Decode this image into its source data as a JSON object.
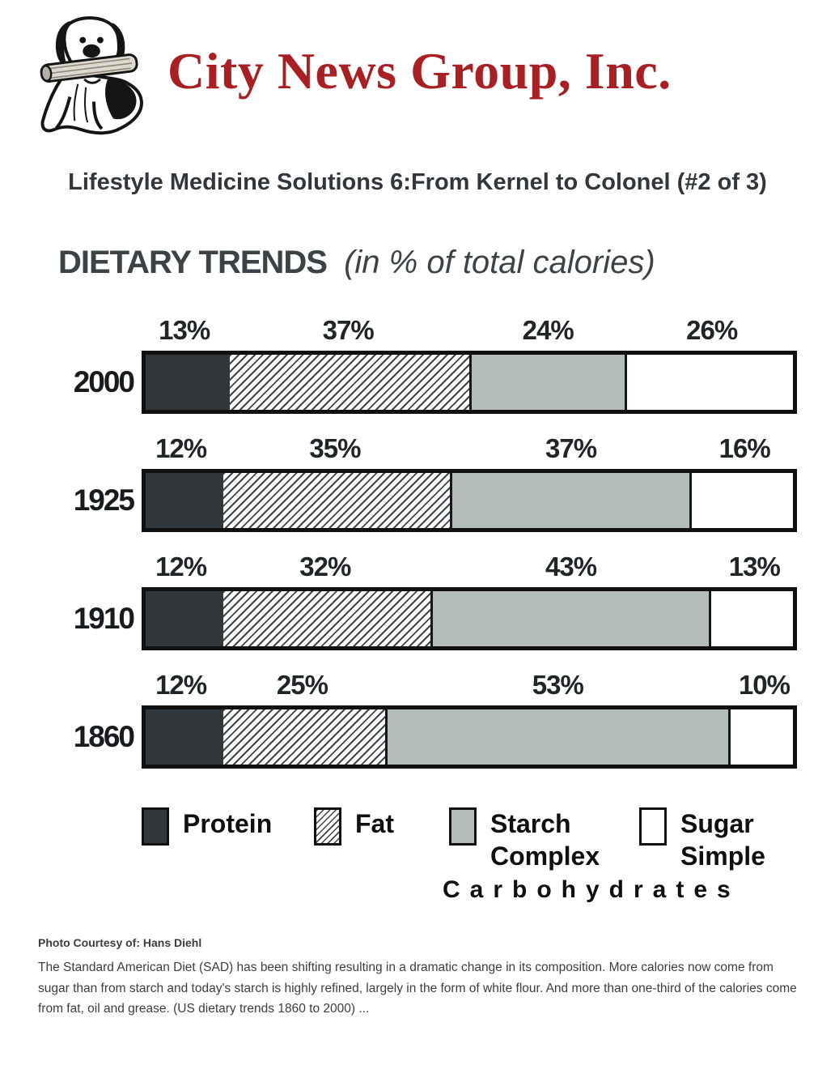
{
  "colors": {
    "brand_red": "#a81f24",
    "protein": "#31373a",
    "starch": "#b4bdba",
    "ink": "#101010",
    "title_ink": "#31373d",
    "chart_title_ink": "#3c4347"
  },
  "header": {
    "brand": "City News Group, Inc.",
    "logo_icon": "dog-with-newspaper-icon"
  },
  "article": {
    "title": "Lifestyle Medicine Solutions 6:From Kernel to Colonel (#2 of 3)"
  },
  "chart_data": {
    "type": "bar",
    "stacked": true,
    "orientation": "horizontal",
    "title": "DIETARY TRENDS",
    "subtitle": "(in % of total calories)",
    "unit": "%",
    "xlim": [
      0,
      100
    ],
    "grid": false,
    "legend_position": "bottom",
    "categories": [
      "2000",
      "1925",
      "1910",
      "1860"
    ],
    "series": [
      {
        "name": "Protein",
        "key": "protein",
        "values": [
          13,
          12,
          12,
          12
        ]
      },
      {
        "name": "Fat",
        "key": "fat",
        "values": [
          37,
          35,
          32,
          25
        ]
      },
      {
        "name": "Starch (Complex Carbohydrates)",
        "key": "starch",
        "values": [
          24,
          37,
          43,
          53
        ]
      },
      {
        "name": "Sugar (Simple Carbohydrates)",
        "key": "sugar",
        "values": [
          26,
          16,
          13,
          10
        ]
      }
    ],
    "legend": [
      {
        "label": "Protein",
        "sublabel": "",
        "key": "protein"
      },
      {
        "label": "Fat",
        "sublabel": "",
        "key": "fat"
      },
      {
        "label": "Starch",
        "sublabel": "Complex",
        "key": "starch"
      },
      {
        "label": "Sugar",
        "sublabel": "Simple",
        "key": "sugar"
      }
    ],
    "legend_group_label": "Carbohydrates"
  },
  "footer": {
    "credit": "Photo Courtesy of: Hans Diehl",
    "paragraph": "The Standard American Diet (SAD) has been shifting resulting in a dramatic change in its composition. More calories now come from sugar than from starch and today's starch is highly refined, largely in the form of white flour. And more than one-third of the calories come from fat, oil and grease. (US dietary trends 1860 to 2000) ..."
  }
}
